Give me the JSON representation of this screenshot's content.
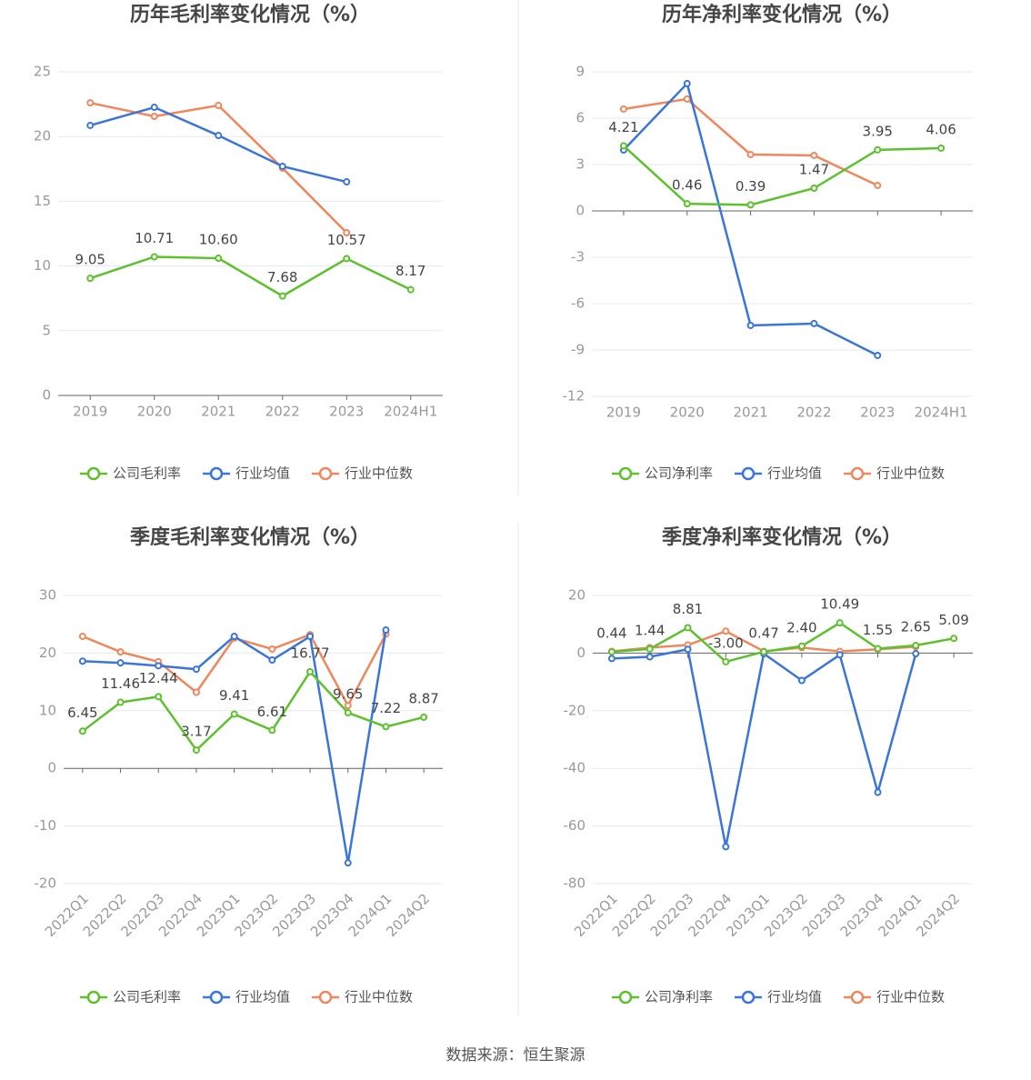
{
  "chart_data": [
    {
      "type": "line",
      "title": "历年毛利率变化情况（%）",
      "categories": [
        "2019",
        "2020",
        "2021",
        "2022",
        "2023",
        "2024H1"
      ],
      "ylim": [
        0,
        25
      ],
      "yticks": [
        0,
        5,
        10,
        15,
        20,
        25
      ],
      "grid": true,
      "series": [
        {
          "name": "公司毛利率",
          "color": "#5cc12c",
          "values": [
            9.05,
            10.71,
            10.6,
            7.68,
            10.57,
            8.17
          ],
          "value_labels": [
            "9.05",
            "10.71",
            "10.60",
            "7.68",
            "10.57",
            "8.17"
          ]
        },
        {
          "name": "行业均值",
          "color": "#3a75d9",
          "values": [
            20.86,
            22.26,
            20.08,
            17.7,
            16.5,
            null
          ]
        },
        {
          "name": "行业中位数",
          "color": "#f0875c",
          "values": [
            22.6,
            21.56,
            22.4,
            17.56,
            12.57,
            null
          ]
        }
      ]
    },
    {
      "type": "line",
      "title": "历年净利率变化情况（%）",
      "categories": [
        "2019",
        "2020",
        "2021",
        "2022",
        "2023",
        "2024H1"
      ],
      "ylim": [
        -12,
        9
      ],
      "yticks": [
        -12,
        -9,
        -6,
        -3,
        0,
        3,
        6,
        9
      ],
      "grid": true,
      "series": [
        {
          "name": "公司净利率",
          "color": "#5cc12c",
          "values": [
            4.21,
            0.46,
            0.39,
            1.47,
            3.95,
            4.06
          ],
          "value_labels": [
            "4.21",
            "0.46",
            "0.39",
            "1.47",
            "3.95",
            "4.06"
          ]
        },
        {
          "name": "行业均值",
          "color": "#3a75d9",
          "values": [
            3.94,
            8.24,
            -7.41,
            -7.29,
            -9.35,
            null
          ]
        },
        {
          "name": "行业中位数",
          "color": "#f0875c",
          "values": [
            6.59,
            7.24,
            3.65,
            3.59,
            1.65,
            null
          ]
        }
      ]
    },
    {
      "type": "line",
      "title": "季度毛利率变化情况（%）",
      "categories": [
        "2022Q1",
        "2022Q2",
        "2022Q3",
        "2022Q4",
        "2023Q1",
        "2023Q2",
        "2023Q3",
        "2023Q4",
        "2024Q1",
        "2024Q2"
      ],
      "ylim": [
        -20,
        30
      ],
      "yticks": [
        -20,
        -10,
        0,
        10,
        20,
        30
      ],
      "grid": true,
      "series": [
        {
          "name": "公司毛利率",
          "color": "#5cc12c",
          "values": [
            6.45,
            11.46,
            12.44,
            3.17,
            9.41,
            6.61,
            16.77,
            9.65,
            7.22,
            8.87
          ],
          "value_labels": [
            "6.45",
            "11.46",
            "12.44",
            "3.17",
            "9.41",
            "6.61",
            "16.77",
            "9.65",
            "7.22",
            "8.87"
          ]
        },
        {
          "name": "行业均值",
          "color": "#3a75d9",
          "values": [
            18.6,
            18.3,
            17.8,
            17.2,
            22.9,
            18.8,
            22.9,
            -16.4,
            24.0,
            null
          ]
        },
        {
          "name": "行业中位数",
          "color": "#f0875c",
          "values": [
            22.9,
            20.2,
            18.5,
            13.2,
            22.6,
            20.7,
            23.2,
            10.9,
            23.3,
            null
          ]
        }
      ]
    },
    {
      "type": "line",
      "title": "季度净利率变化情况（%）",
      "categories": [
        "2022Q1",
        "2022Q2",
        "2022Q3",
        "2022Q4",
        "2023Q1",
        "2023Q2",
        "2023Q3",
        "2023Q4",
        "2024Q1",
        "2024Q2"
      ],
      "ylim": [
        -80,
        20
      ],
      "yticks": [
        -80,
        -60,
        -40,
        -20,
        0,
        20
      ],
      "grid": true,
      "series": [
        {
          "name": "公司净利率",
          "color": "#5cc12c",
          "values": [
            0.44,
            1.44,
            8.81,
            -3.0,
            0.47,
            2.4,
            10.49,
            1.55,
            2.65,
            5.09
          ],
          "value_labels": [
            "0.44",
            "1.44",
            "8.81",
            "-3.00",
            "0.47",
            "2.40",
            "10.49",
            "1.55",
            "2.65",
            "5.09"
          ]
        },
        {
          "name": "行业均值",
          "color": "#3a75d9",
          "values": [
            -1.9,
            -1.3,
            1.3,
            -67.2,
            -0.2,
            -9.5,
            -0.6,
            -48.3,
            -0.2,
            null
          ]
        },
        {
          "name": "行业中位数",
          "color": "#f0875c",
          "values": [
            0.6,
            1.9,
            2.8,
            7.6,
            0.6,
            1.9,
            0.6,
            1.3,
            2.2,
            null
          ]
        }
      ]
    }
  ],
  "source": "数据来源：恒生聚源"
}
